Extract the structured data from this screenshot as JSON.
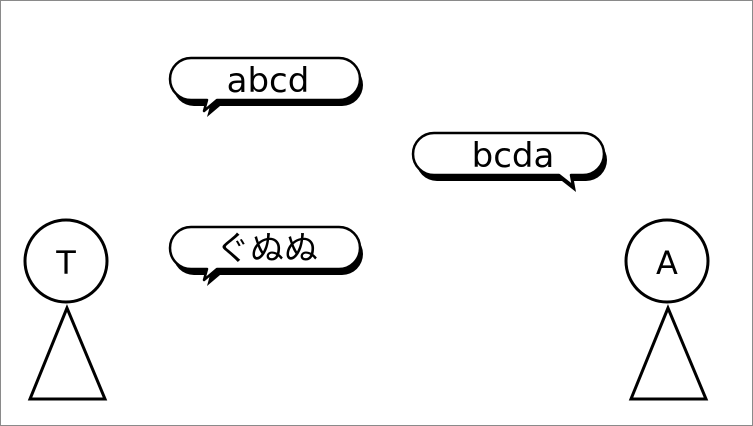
{
  "actors": {
    "left": {
      "label": "T"
    },
    "right": {
      "label": "A"
    }
  },
  "bubbles": {
    "message_1": {
      "text": "abcd",
      "speaker": "left"
    },
    "message_2": {
      "text": "bcda",
      "speaker": "right"
    },
    "message_3": {
      "text": "ぐぬぬ",
      "speaker": "left"
    }
  },
  "colors": {
    "stroke": "#000000",
    "fill": "#ffffff",
    "frame": "#8a8a8a"
  }
}
